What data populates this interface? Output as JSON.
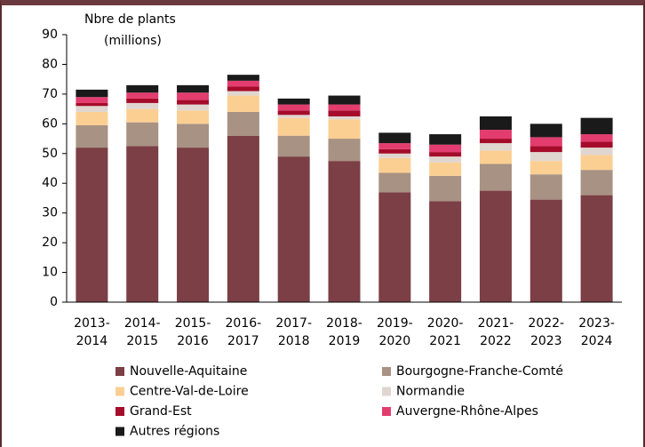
{
  "chart_data": {
    "type": "stacked_bar",
    "y_label": [
      "Nbre de plants",
      "(millions)"
    ],
    "categories": [
      "2013-2014",
      "2014-2015",
      "2015-2016",
      "2016-2017",
      "2017-2018",
      "2018-2019",
      "2019-2020",
      "2020-2021",
      "2021-2022",
      "2022-2023",
      "2023-2024"
    ],
    "series": [
      {
        "name": "Nouvelle-Aquitaine",
        "color": "#7b3f45",
        "values": [
          52,
          52.5,
          52,
          56,
          49,
          47.5,
          37,
          34,
          37.5,
          34.5,
          36
        ]
      },
      {
        "name": "Bourgogne-Franche-Comté",
        "color": "#a89283",
        "values": [
          7.5,
          8,
          8,
          8,
          7,
          7.5,
          6.5,
          8.5,
          9,
          8.5,
          8.5
        ]
      },
      {
        "name": "Centre-Val-de-Loire",
        "color": "#fbcf92",
        "values": [
          4.5,
          4.5,
          4.5,
          5.5,
          6,
          6.5,
          5,
          4.5,
          4.5,
          4.5,
          5
        ]
      },
      {
        "name": "Normandie",
        "color": "#e0d6d0",
        "values": [
          2,
          2,
          2,
          1.5,
          1,
          1,
          1.5,
          2,
          2.5,
          3,
          2.5
        ]
      },
      {
        "name": "Grand-Est",
        "color": "#a50b2a",
        "values": [
          1,
          1.5,
          1.5,
          1.5,
          1.5,
          2,
          1.5,
          1.5,
          1.5,
          2,
          2
        ]
      },
      {
        "name": "Auvergne-Rhône-Alpes",
        "color": "#e23d6e",
        "values": [
          2,
          2,
          2.5,
          2,
          2,
          2,
          2,
          2.5,
          3,
          3,
          2.5
        ]
      },
      {
        "name": "Autres régions",
        "color": "#1a1a1a",
        "values": [
          2.5,
          2.5,
          2.5,
          2,
          2,
          3,
          3.5,
          3.5,
          4.5,
          4.5,
          5.5
        ]
      }
    ],
    "ylim": [
      0,
      90
    ],
    "yticks": [
      0,
      10,
      20,
      30,
      40,
      50,
      60,
      70,
      80,
      90
    ],
    "grid": false
  }
}
